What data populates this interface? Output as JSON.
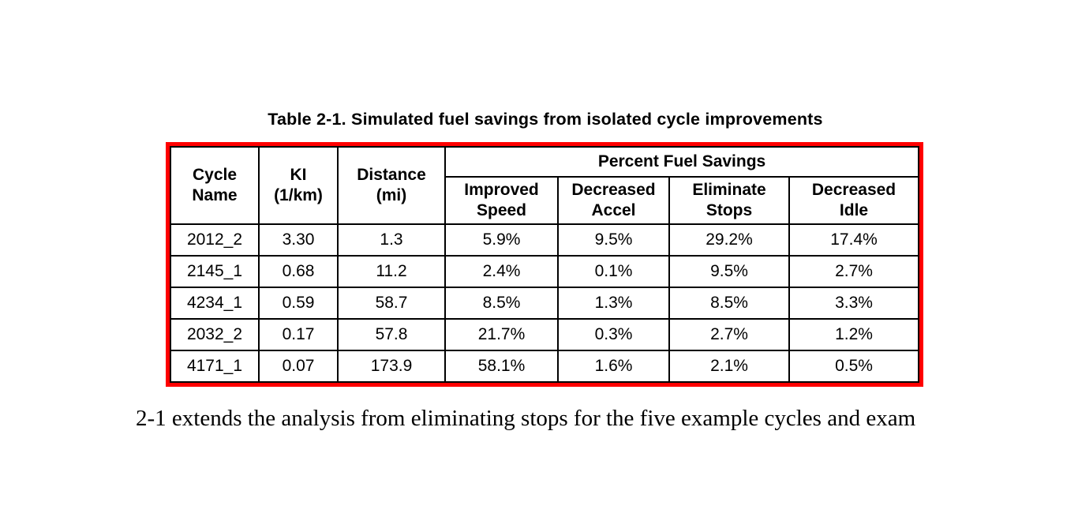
{
  "caption": "Table 2-1. Simulated fuel savings from isolated cycle improvements",
  "table": {
    "border_color": "#ff0000",
    "grid_color": "#000000",
    "row_headers": {
      "cycle_name": "Cycle\nName",
      "ki": "KI\n(1/km)",
      "distance": "Distance\n(mi)"
    },
    "group_header": "Percent Fuel Savings",
    "sub_headers": {
      "improved_speed": "Improved\nSpeed",
      "decreased_accel": "Decreased\nAccel",
      "eliminate_stops": "Eliminate\nStops",
      "decreased_idle": "Decreased\nIdle"
    },
    "rows": [
      [
        "2012_2",
        "3.30",
        "1.3",
        "5.9%",
        "9.5%",
        "29.2%",
        "17.4%"
      ],
      [
        "2145_1",
        "0.68",
        "11.2",
        "2.4%",
        "0.1%",
        "9.5%",
        "2.7%"
      ],
      [
        "4234_1",
        "0.59",
        "58.7",
        "8.5%",
        "1.3%",
        "8.5%",
        "3.3%"
      ],
      [
        "2032_2",
        "0.17",
        "57.8",
        "21.7%",
        "0.3%",
        "2.7%",
        "1.2%"
      ],
      [
        "4171_1",
        "0.07",
        "173.9",
        "58.1%",
        "1.6%",
        "2.1%",
        "0.5%"
      ]
    ]
  },
  "paragraph": "2-1 extends the analysis from eliminating stops for the five example cycles and exam"
}
